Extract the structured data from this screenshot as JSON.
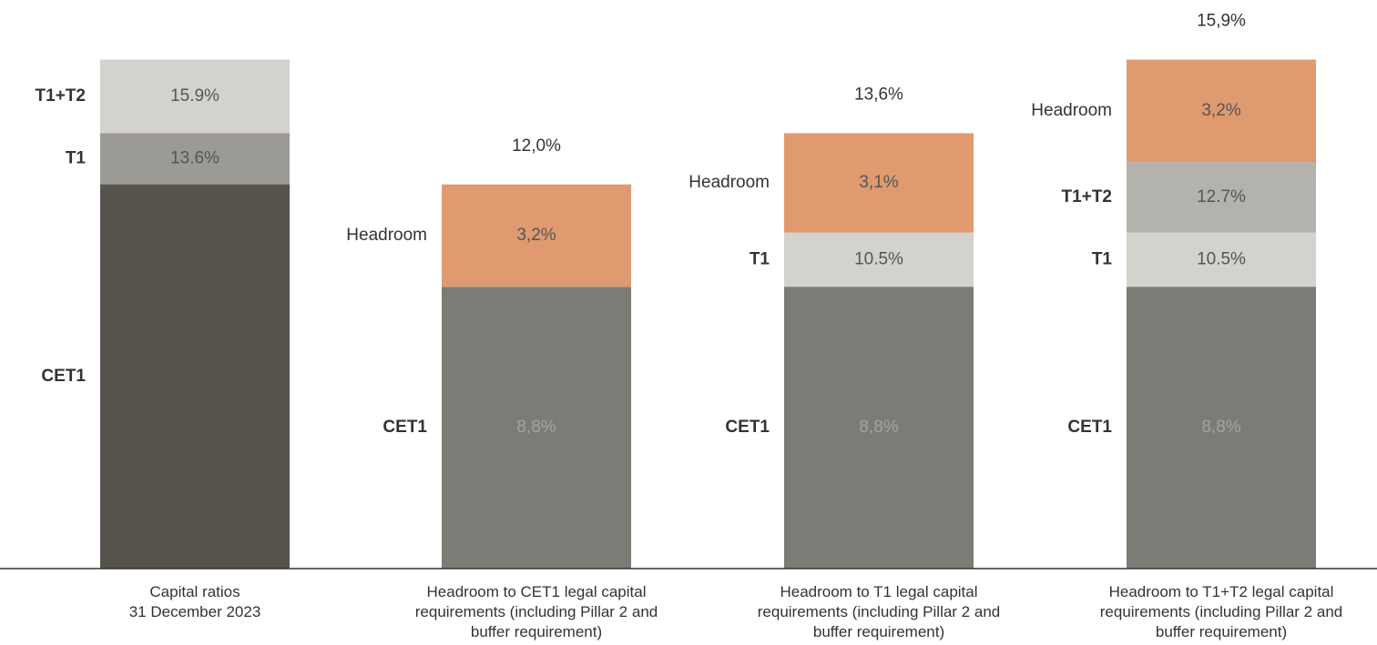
{
  "chart_data": {
    "type": "bar",
    "ylim": [
      0,
      16
    ],
    "bars": [
      {
        "category": "Capital ratios\n31 December 2023",
        "levels": [
          {
            "name": "CET1",
            "value": 12.0,
            "color": "#56534c"
          },
          {
            "name": "T1",
            "value": 13.6,
            "value_label": "13.6%",
            "color": "#9c9a94"
          },
          {
            "name": "T1+T2",
            "value": 15.9,
            "value_label": "15.9%",
            "color": "#d3d2cd"
          }
        ]
      },
      {
        "category": "Headroom to CET1 legal capital\nrequirements (including  Pillar 2 and\nbuffer requirement)",
        "levels": [
          {
            "name": "CET1",
            "value": 8.8,
            "value_label": "8,8%",
            "color": "#7d7b76"
          }
        ],
        "headroom": {
          "name": "Headroom",
          "value": 3.2,
          "value_label": "3,2%",
          "color": "#df9a6f"
        },
        "total": {
          "value": 12.0,
          "label": "12,0%"
        }
      },
      {
        "category": "Headroom to T1 legal capital\nrequirements (including  Pillar 2 and\nbuffer requirement)",
        "levels": [
          {
            "name": "CET1",
            "value": 8.8,
            "value_label": "8,8%",
            "color": "#7d7b76"
          },
          {
            "name": "T1",
            "value": 10.5,
            "value_label": "10.5%",
            "color": "#d3d2cd"
          }
        ],
        "headroom": {
          "name": "Headroom",
          "value": 3.1,
          "value_label": "3,1%",
          "color": "#df9a6f"
        },
        "total": {
          "value": 13.6,
          "label": "13,6%"
        }
      },
      {
        "category": "Headroom to T1+T2 legal capital\nrequirements (including  Pillar 2 and\nbuffer requirement)",
        "levels": [
          {
            "name": "CET1",
            "value": 8.8,
            "value_label": "8,8%",
            "color": "#7d7b76"
          },
          {
            "name": "T1",
            "value": 10.5,
            "value_label": "10.5%",
            "color": "#d3d2cd"
          },
          {
            "name": "T1+T2",
            "value": 12.7,
            "value_label": "12.7%",
            "color": "#b3b2ad"
          }
        ],
        "headroom": {
          "name": "Headroom",
          "value": 3.2,
          "value_label": "3,2%",
          "color": "#df9a6f"
        },
        "total": {
          "value": 15.9,
          "label": "15,9%"
        }
      }
    ]
  }
}
